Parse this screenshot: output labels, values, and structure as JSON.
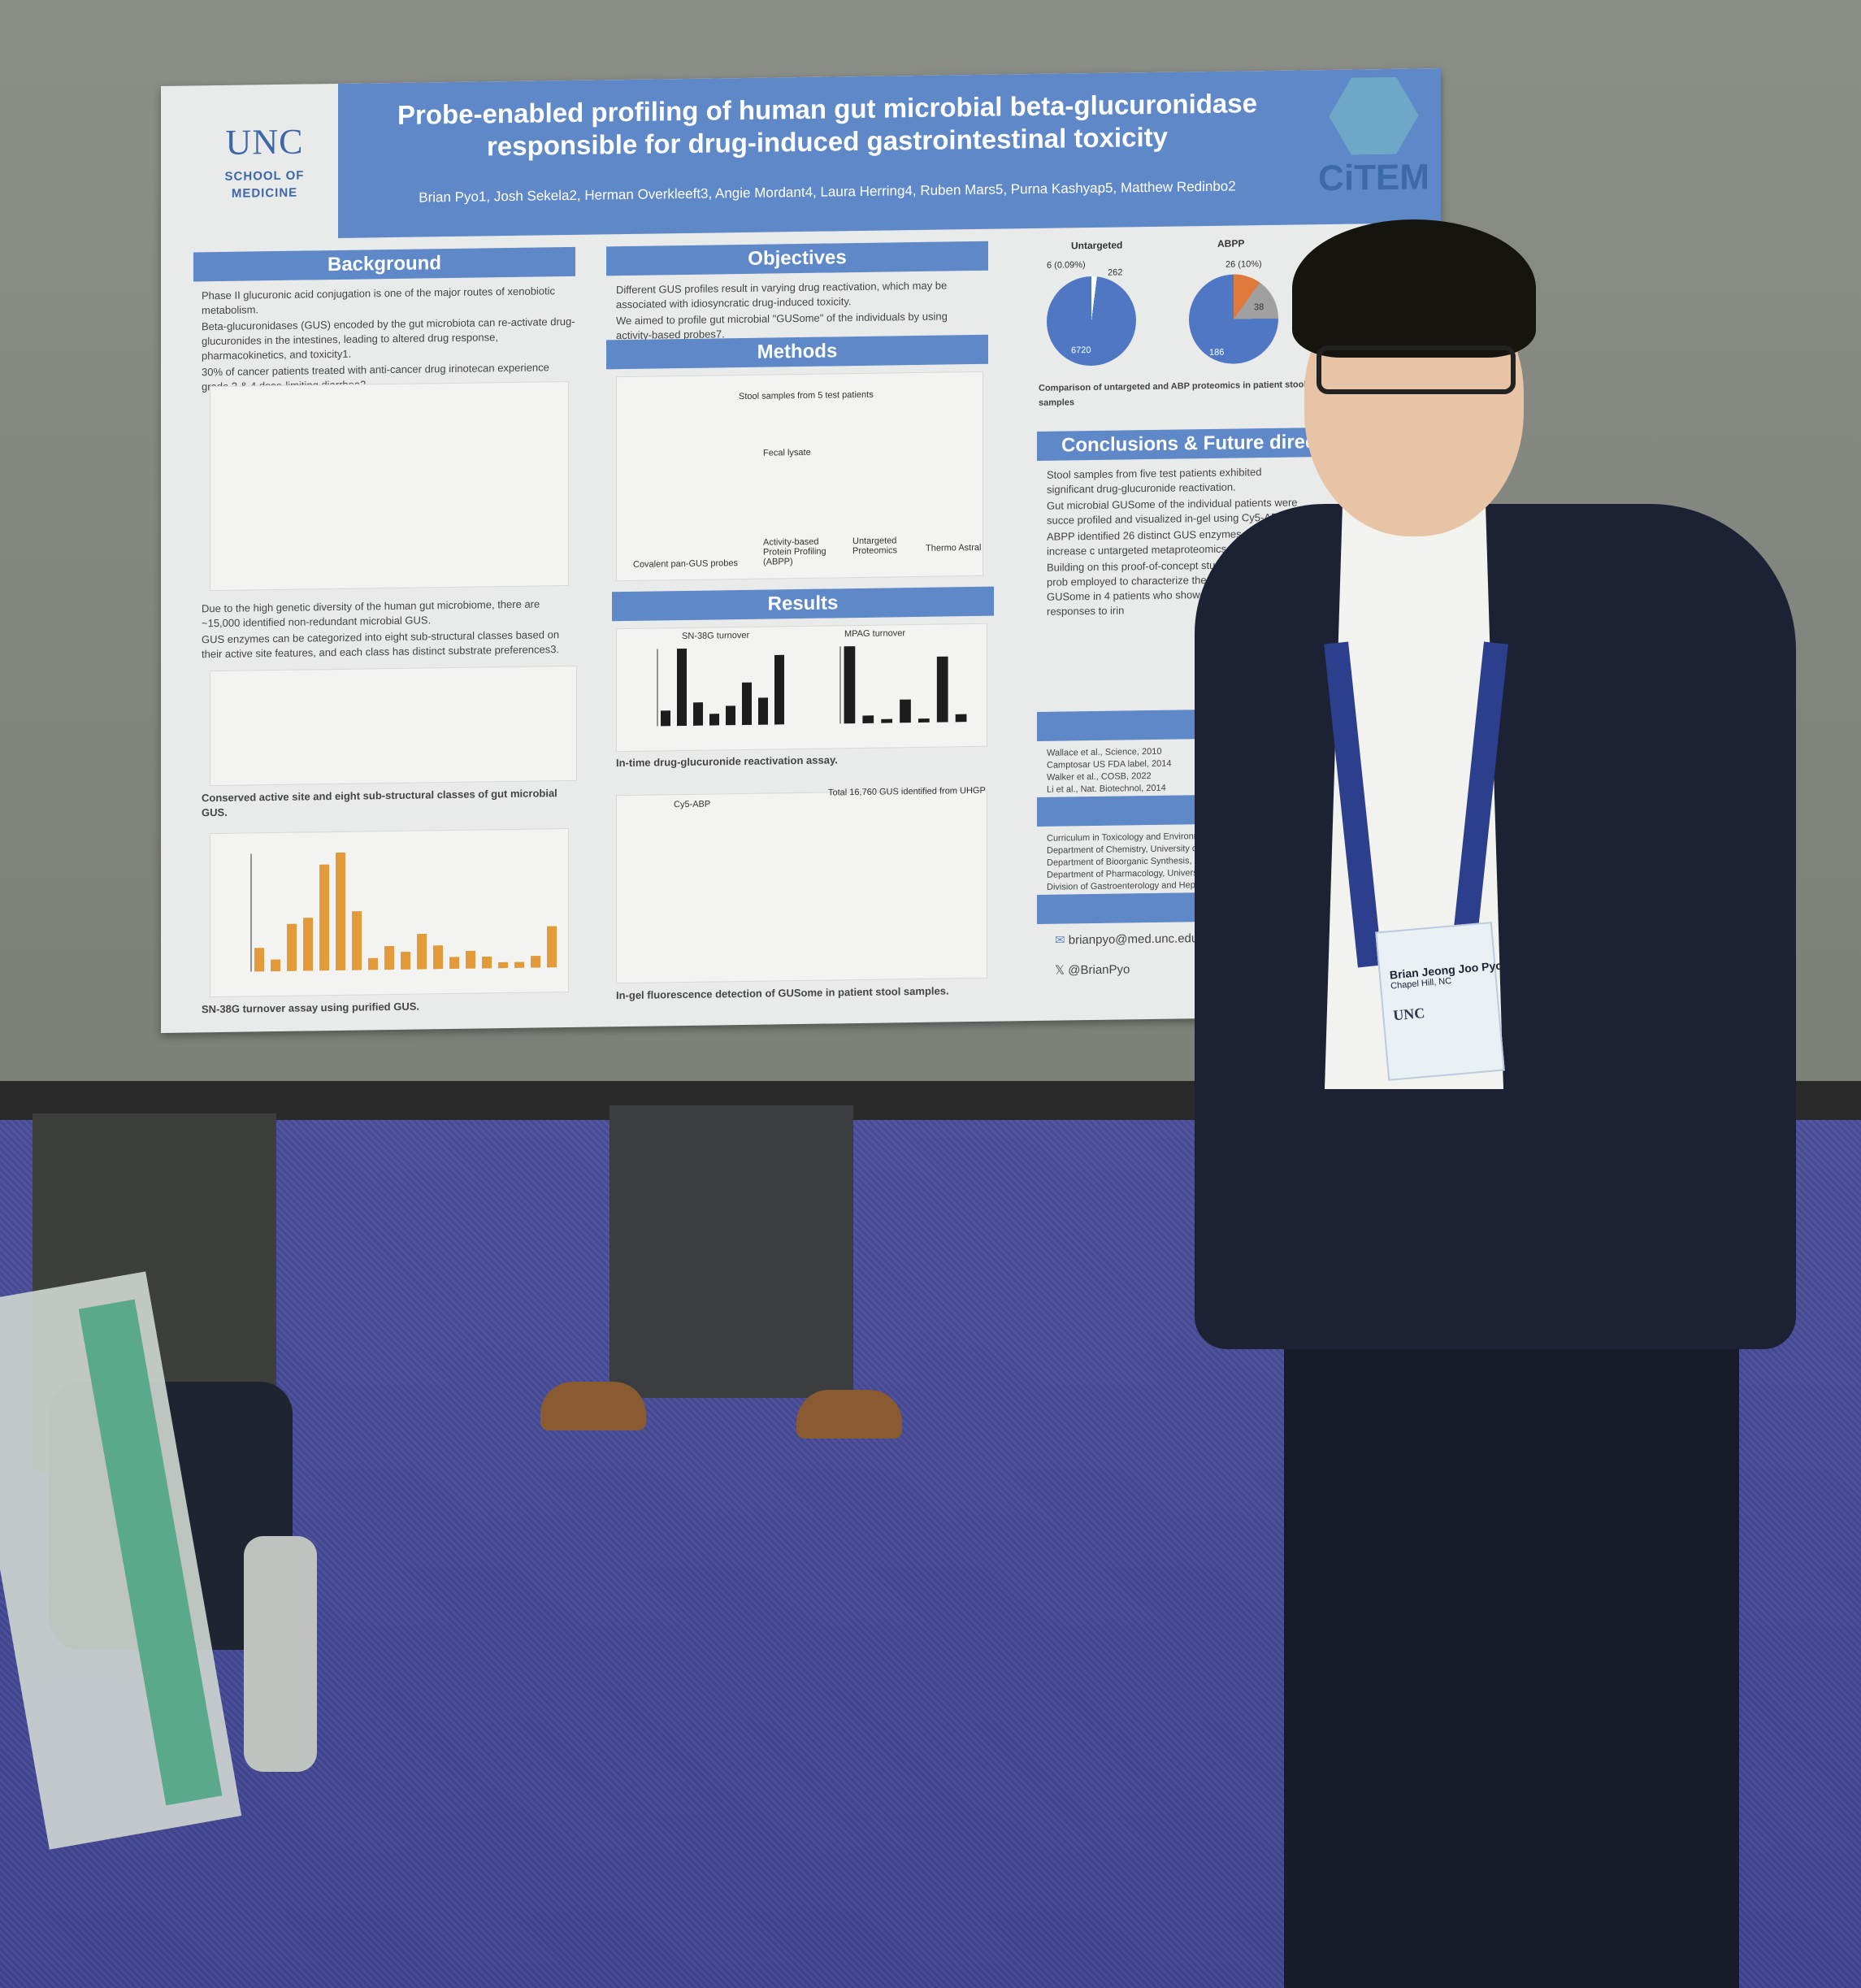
{
  "poster": {
    "institution": {
      "logo_text": "UNC",
      "subtitle_line1": "SCHOOL OF",
      "subtitle_line2": "MEDICINE"
    },
    "partner_logo": "CiTEM",
    "title_line1": "Probe-enabled profiling of human gut microbial beta-glucuronidase",
    "title_line2": "responsible for drug-induced gastrointestinal toxicity",
    "authors": "Brian Pyo1, Josh Sekela2, Herman Overkleeft3, Angie Mordant4, Laura Herring4, Ruben Mars5, Purna Kashyap5, Matthew Redinbo2",
    "sections": {
      "background": {
        "heading": "Background",
        "bullets": [
          "Phase II glucuronic acid conjugation is one of the major routes of xenobiotic metabolism.",
          "Beta-glucuronidases (GUS) encoded by the gut microbiota can re-activate drug-glucuronides in the intestines, leading to altered drug response, pharmacokinetics, and toxicity1.",
          "30% of cancer patients treated with anti-cancer drug irinotecan experience grade 3 & 4 dose-limiting diarrhea2."
        ],
        "bullets2": [
          "Due to the high genetic diversity of the human gut microbiome, there are ~15,000 identified non-redundant microbial GUS.",
          "GUS enzymes can be categorized into eight sub-structural classes based on their active site features, and each class has distinct substrate preferences3."
        ],
        "caption1": "Conserved active site and eight sub-structural classes of gut microbial GUS.",
        "caption2": "SN-38G turnover assay using purified GUS."
      },
      "objectives": {
        "heading": "Objectives",
        "bullets": [
          "Different GUS profiles result in varying drug reactivation, which may be associated with idiosyncratic drug-induced toxicity.",
          "We aimed to profile gut microbial \"GUSome\" of the individuals by using activity-based probes7."
        ]
      },
      "methods": {
        "heading": "Methods",
        "labels": [
          "Stool samples from 5 test patients",
          "Fecal lysate",
          "Covalent pan-GUS probes",
          "Activity-based Protein Profiling (ABPP)",
          "Untargeted Proteomics",
          "Thermo Astral"
        ]
      },
      "results": {
        "heading": "Results",
        "chart1_title": "SN-38G turnover",
        "chart2_title": "MPAG turnover",
        "caption1": "In-time drug-glucuronide reactivation assay.",
        "gel_title": "Cy5-ABP",
        "hist_title": "Total 16,760 GUS identified from UHGP",
        "caption2": "In-gel fluorescence detection of GUSome in patient stool samples."
      },
      "proteomics": {
        "label_untargeted": "Untargeted",
        "label_abpp": "ABPP",
        "untargeted_values": [
          "6 (0.09%)",
          "262",
          "6720"
        ],
        "abpp_values": [
          "26 (10%)",
          "38",
          "186"
        ],
        "caption": "Comparison of untargeted and ABP proteomics in patient stool samples"
      },
      "conclusions": {
        "heading": "Conclusions & Future direc",
        "bullets": [
          "Stool samples from five test patients exhibited significant drug-glucuronide reactivation.",
          "Gut microbial GUSome of the individual patients were succe profiled and visualized in-gel using Cy5-ABP.",
          "ABPP identified 26 distinct GUS enzymes, a 4-fold increase c untargeted metaproteomics.",
          "Building on this proof-of-concept study, activity-based prob employed to characterize the gut microbial GUSome in 4 patients who showed varying toxicity responses to irin"
        ]
      },
      "references": {
        "heading": "Re",
        "items": [
          "Wallace et al., Science, 2010",
          "Camptosar US FDA label, 2014",
          "Walker et al., COSB, 2022",
          "Li et al., Nat. Biotechnol, 2014"
        ]
      },
      "affiliations": {
        "heading": "Affi",
        "items": [
          "Curriculum in Toxicology and Environmen Chapel Hill, NC, USA",
          "Department of Chemistry, University of Nor",
          "Department of Bioorganic Synthesis, Leide Netherlands",
          "Department of Pharmacology, University of",
          "Division of Gastroenterology and Hepatolog"
        ]
      },
      "contact": {
        "heading": "Cont",
        "email": "brianpyo@med.unc.edu",
        "handle": "@BrianPyo"
      }
    }
  },
  "badge": {
    "name": "Brian Jeong Joo Pyo",
    "location": "Chapel Hill, NC",
    "logo": "UNC"
  },
  "chart_data": [
    {
      "type": "bar",
      "title": "SN-38G turnover",
      "values": [
        0.2,
        1.0,
        0.3,
        0.15,
        0.25,
        0.55,
        0.35,
        0.9
      ]
    },
    {
      "type": "bar",
      "title": "MPAG turnover",
      "values": [
        1.0,
        0.1,
        0.05,
        0.3,
        0.05,
        0.85,
        0.1
      ]
    },
    {
      "type": "bar",
      "title": "SN-38G turnover assay using purified GUS",
      "values": [
        0.2,
        0.1,
        0.4,
        0.45,
        0.9,
        1.0,
        0.5,
        0.1,
        0.2,
        0.15,
        0.3,
        0.2,
        0.1,
        0.15,
        0.1,
        0.05,
        0.05,
        0.1,
        0.35
      ]
    },
    {
      "type": "pie",
      "title": "Untargeted",
      "values": [
        6720,
        262,
        6
      ]
    },
    {
      "type": "pie",
      "title": "ABPP",
      "values": [
        186,
        38,
        26
      ]
    }
  ]
}
